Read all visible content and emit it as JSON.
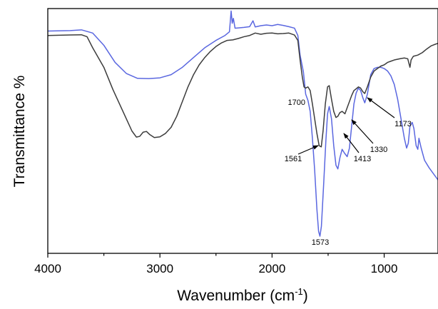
{
  "chart_data": {
    "type": "line",
    "xlabel": "Wavenumber (cm",
    "xlabel_sup": "-1",
    "xlabel_close": ")",
    "ylabel": "Transmittance %",
    "xlim": [
      4000,
      520
    ],
    "x_reversed": true,
    "ylim": [
      0,
      100
    ],
    "y_tick_labels": false,
    "grid": false,
    "legend": "none",
    "x_ticks": [
      4000,
      3000,
      2000,
      1000
    ],
    "x_tick_labels": [
      "4000",
      "3000",
      "2000",
      "1000"
    ],
    "series": [
      {
        "color": "#5a67e0",
        "points": [
          [
            4000,
            90.8
          ],
          [
            3800,
            91.0
          ],
          [
            3700,
            91.3
          ],
          [
            3600,
            90.0
          ],
          [
            3500,
            85.0
          ],
          [
            3400,
            78.0
          ],
          [
            3300,
            73.5
          ],
          [
            3200,
            71.5
          ],
          [
            3100,
            71.4
          ],
          [
            3000,
            71.7
          ],
          [
            2900,
            73.0
          ],
          [
            2800,
            76.0
          ],
          [
            2700,
            80.0
          ],
          [
            2600,
            84.0
          ],
          [
            2500,
            87.0
          ],
          [
            2420,
            89.0
          ],
          [
            2380,
            90.5
          ],
          [
            2365,
            99.0
          ],
          [
            2355,
            94.0
          ],
          [
            2345,
            96.0
          ],
          [
            2330,
            92.0
          ],
          [
            2300,
            92.1
          ],
          [
            2250,
            92.3
          ],
          [
            2200,
            92.6
          ],
          [
            2170,
            95.0
          ],
          [
            2150,
            92.5
          ],
          [
            2100,
            93.0
          ],
          [
            2050,
            93.3
          ],
          [
            2000,
            93.0
          ],
          [
            1950,
            93.5
          ],
          [
            1900,
            93.1
          ],
          [
            1850,
            92.6
          ],
          [
            1800,
            92.0
          ],
          [
            1770,
            89.0
          ],
          [
            1750,
            81.0
          ],
          [
            1720,
            74.0
          ],
          [
            1700,
            65.0
          ],
          [
            1680,
            62.5
          ],
          [
            1660,
            58.0
          ],
          [
            1640,
            47.0
          ],
          [
            1620,
            34.0
          ],
          [
            1600,
            18.0
          ],
          [
            1585,
            9.0
          ],
          [
            1573,
            7.0
          ],
          [
            1560,
            11.0
          ],
          [
            1540,
            28.0
          ],
          [
            1520,
            46.0
          ],
          [
            1505,
            57.0
          ],
          [
            1490,
            60.0
          ],
          [
            1470,
            55.0
          ],
          [
            1450,
            44.0
          ],
          [
            1430,
            36.0
          ],
          [
            1413,
            34.5
          ],
          [
            1395,
            39.0
          ],
          [
            1375,
            42.5
          ],
          [
            1355,
            41.0
          ],
          [
            1330,
            39.5
          ],
          [
            1310,
            43.0
          ],
          [
            1290,
            52.0
          ],
          [
            1270,
            61.0
          ],
          [
            1250,
            65.5
          ],
          [
            1230,
            67.5
          ],
          [
            1210,
            66.5
          ],
          [
            1190,
            63.5
          ],
          [
            1173,
            61.5
          ],
          [
            1150,
            65.0
          ],
          [
            1120,
            73.0
          ],
          [
            1090,
            75.5
          ],
          [
            1060,
            76.0
          ],
          [
            1030,
            76.0
          ],
          [
            1000,
            75.5
          ],
          [
            970,
            74.5
          ],
          [
            940,
            72.5
          ],
          [
            910,
            69.0
          ],
          [
            880,
            63.0
          ],
          [
            850,
            55.0
          ],
          [
            820,
            47.0
          ],
          [
            800,
            43.0
          ],
          [
            785,
            45.0
          ],
          [
            770,
            52.0
          ],
          [
            750,
            53.5
          ],
          [
            735,
            51.0
          ],
          [
            715,
            44.0
          ],
          [
            700,
            42.5
          ],
          [
            690,
            47.0
          ],
          [
            670,
            43.0
          ],
          [
            640,
            38.0
          ],
          [
            600,
            35.0
          ],
          [
            560,
            32.5
          ],
          [
            520,
            30.0
          ]
        ]
      },
      {
        "color": "#3c3c3c",
        "points": [
          [
            4000,
            89.0
          ],
          [
            3800,
            89.2
          ],
          [
            3700,
            89.3
          ],
          [
            3650,
            88.5
          ],
          [
            3600,
            84.0
          ],
          [
            3500,
            76.0
          ],
          [
            3420,
            67.0
          ],
          [
            3350,
            60.0
          ],
          [
            3300,
            55.0
          ],
          [
            3250,
            50.0
          ],
          [
            3210,
            47.5
          ],
          [
            3180,
            47.8
          ],
          [
            3150,
            49.5
          ],
          [
            3120,
            49.8
          ],
          [
            3090,
            48.5
          ],
          [
            3050,
            47.3
          ],
          [
            3000,
            47.6
          ],
          [
            2950,
            49.0
          ],
          [
            2900,
            51.5
          ],
          [
            2850,
            56.0
          ],
          [
            2800,
            62.0
          ],
          [
            2750,
            68.0
          ],
          [
            2700,
            73.0
          ],
          [
            2650,
            77.0
          ],
          [
            2600,
            80.0
          ],
          [
            2550,
            82.5
          ],
          [
            2500,
            84.5
          ],
          [
            2450,
            86.0
          ],
          [
            2400,
            87.0
          ],
          [
            2350,
            87.2
          ],
          [
            2300,
            87.8
          ],
          [
            2250,
            88.5
          ],
          [
            2200,
            89.0
          ],
          [
            2150,
            90.0
          ],
          [
            2100,
            89.5
          ],
          [
            2050,
            89.9
          ],
          [
            2000,
            90.0
          ],
          [
            1950,
            89.7
          ],
          [
            1900,
            89.8
          ],
          [
            1850,
            90.0
          ],
          [
            1800,
            89.2
          ],
          [
            1770,
            87.0
          ],
          [
            1750,
            79.0
          ],
          [
            1730,
            72.0
          ],
          [
            1715,
            68.0
          ],
          [
            1700,
            67.5
          ],
          [
            1680,
            68.0
          ],
          [
            1660,
            66.5
          ],
          [
            1640,
            61.0
          ],
          [
            1620,
            55.0
          ],
          [
            1600,
            49.0
          ],
          [
            1580,
            44.0
          ],
          [
            1561,
            43.5
          ],
          [
            1545,
            50.0
          ],
          [
            1525,
            61.0
          ],
          [
            1505,
            68.0
          ],
          [
            1490,
            68.5
          ],
          [
            1470,
            63.0
          ],
          [
            1450,
            58.0
          ],
          [
            1430,
            55.5
          ],
          [
            1413,
            56.0
          ],
          [
            1395,
            57.5
          ],
          [
            1375,
            58.0
          ],
          [
            1350,
            57.0
          ],
          [
            1330,
            59.5
          ],
          [
            1310,
            62.0
          ],
          [
            1290,
            64.5
          ],
          [
            1270,
            66.5
          ],
          [
            1250,
            67.2
          ],
          [
            1230,
            68.0
          ],
          [
            1210,
            67.5
          ],
          [
            1190,
            66.0
          ],
          [
            1173,
            65.3
          ],
          [
            1150,
            68.0
          ],
          [
            1120,
            72.0
          ],
          [
            1090,
            74.5
          ],
          [
            1060,
            75.5
          ],
          [
            1030,
            76.5
          ],
          [
            1000,
            77.0
          ],
          [
            970,
            78.0
          ],
          [
            940,
            78.5
          ],
          [
            910,
            79.0
          ],
          [
            880,
            79.3
          ],
          [
            850,
            79.6
          ],
          [
            820,
            79.8
          ],
          [
            790,
            79.5
          ],
          [
            770,
            76.0
          ],
          [
            760,
            79.0
          ],
          [
            740,
            80.5
          ],
          [
            700,
            81.0
          ],
          [
            660,
            82.0
          ],
          [
            620,
            83.5
          ],
          [
            580,
            84.8
          ],
          [
            540,
            85.5
          ],
          [
            520,
            85.8
          ]
        ]
      }
    ],
    "annotations": [
      {
        "label": "1700",
        "color": "#000000",
        "x": 1700,
        "arrow": false
      },
      {
        "label": "1561",
        "color": "#000000",
        "x": 1561,
        "arrow": true
      },
      {
        "label": "1413",
        "color": "#000000",
        "x": 1413,
        "arrow": true
      },
      {
        "label": "1330",
        "color": "#000000",
        "x": 1330,
        "arrow": true
      },
      {
        "label": "1173",
        "color": "#000000",
        "x": 1173,
        "arrow": true
      },
      {
        "label": "1573",
        "color": "#4a4fd0",
        "x": 1573,
        "arrow": false
      }
    ]
  }
}
